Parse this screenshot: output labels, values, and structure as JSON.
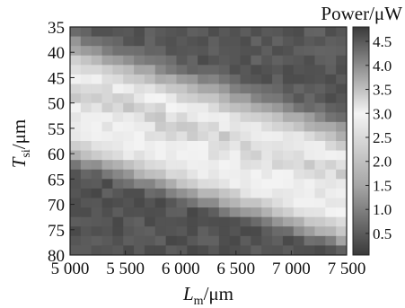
{
  "chart_data": {
    "type": "heatmap",
    "title": "",
    "xlabel": {
      "symbol": "L",
      "subscript": "m",
      "unit": "/μm"
    },
    "ylabel": {
      "symbol": "T",
      "subscript": "si",
      "unit": "/μm"
    },
    "xlim": [
      5000,
      7500
    ],
    "ylim": [
      35,
      80
    ],
    "y_axis_inverted": true,
    "x_ticks": [
      {
        "value": 5000,
        "label": "5 000"
      },
      {
        "value": 5500,
        "label": "5 500"
      },
      {
        "value": 6000,
        "label": "6 000"
      },
      {
        "value": 6500,
        "label": "6 500"
      },
      {
        "value": 7000,
        "label": "7 000"
      },
      {
        "value": 7500,
        "label": "7 500"
      }
    ],
    "y_ticks": [
      {
        "value": 35,
        "label": "35"
      },
      {
        "value": 40,
        "label": "40"
      },
      {
        "value": 45,
        "label": "45"
      },
      {
        "value": 50,
        "label": "50"
      },
      {
        "value": 55,
        "label": "55"
      },
      {
        "value": 60,
        "label": "60"
      },
      {
        "value": 65,
        "label": "65"
      },
      {
        "value": 70,
        "label": "70"
      },
      {
        "value": 75,
        "label": "75"
      },
      {
        "value": 80,
        "label": "80"
      }
    ],
    "grid_size": {
      "cols": 26,
      "rows": 24
    },
    "value_model": {
      "description_of_values": "Power (μW) at each (Lm, Tsi) grid cell, estimated from the grayscale colorbar",
      "ridge": {
        "center_y_at_x5000": 47,
        "slope_y_per_um": 0.0068,
        "width_y": 6.5,
        "peak": 3.3
      },
      "upper_dark_region_value": 0.45,
      "lower_dark_region_value": 0.4,
      "secondary_band": {
        "center_y_at_x5000": 57,
        "slope_y_per_um": 0.0068,
        "width_y": 3.5,
        "peak": 1.6
      }
    },
    "colorbar": {
      "label": "Power/μW",
      "min": 0.05,
      "max": 4.8,
      "ticks": [
        "0.5",
        "1.0",
        "1.5",
        "2.0",
        "2.5",
        "3.0",
        "3.5",
        "4.0",
        "4.5"
      ],
      "tick_values": [
        0.5,
        1.0,
        1.5,
        2.0,
        2.5,
        3.0,
        3.5,
        4.0,
        4.5
      ],
      "gray_stops": [
        {
          "value": 0.05,
          "color": "#3a3a3a"
        },
        {
          "value": 1.5,
          "color": "#a6a6a6"
        },
        {
          "value": 3.0,
          "color": "#f4f4f4"
        },
        {
          "value": 4.8,
          "color": "#3a3a3a"
        }
      ]
    }
  }
}
